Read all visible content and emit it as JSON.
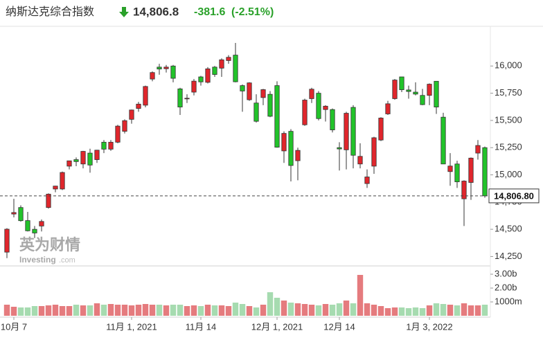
{
  "header": {
    "title": "纳斯达克综合指数",
    "price": "14,806.8",
    "change": "-381.6",
    "change_pct": "(-2.51%)"
  },
  "watermark": {
    "brand": "英为财情",
    "site": "Investing",
    "domain": ".com"
  },
  "chart_data": {
    "type": "candlestick",
    "categories": [
      null,
      "10月 7",
      null,
      null,
      null,
      null,
      null,
      null,
      null,
      null,
      null,
      null,
      null,
      null,
      null,
      null,
      null,
      null,
      "11月 1, 2021",
      null,
      null,
      null,
      null,
      null,
      null,
      null,
      null,
      null,
      "11月 14",
      null,
      null,
      null,
      null,
      null,
      null,
      null,
      null,
      null,
      null,
      "12月 1, 2021",
      null,
      null,
      null,
      null,
      null,
      null,
      null,
      null,
      "12月 14",
      null,
      null,
      null,
      null,
      null,
      null,
      null,
      null,
      null,
      null,
      null,
      null,
      "1月 3, 2022",
      null,
      null,
      null,
      null,
      null,
      null,
      null,
      null
    ],
    "open": [
      14290,
      14640,
      14700,
      14580,
      14500,
      14530,
      14700,
      14870,
      14870,
      15080,
      15140,
      15100,
      15200,
      15140,
      15300,
      15236,
      15300,
      15400,
      15510,
      15610,
      15640,
      15880,
      15990,
      15975,
      16000,
      15790,
      15700,
      15760,
      15900,
      15850,
      15990,
      15980,
      16050,
      16100,
      15820,
      15690,
      15660,
      15710,
      15740,
      15820,
      15220,
      15400,
      15130,
      15460,
      15700,
      15750,
      15600,
      15600,
      15250,
      15230,
      15620,
      15100,
      14920,
      15080,
      15320,
      15560,
      15700,
      15900,
      15780,
      15760,
      15730,
      15730,
      15860,
      15530,
      15030,
      15100,
      14780,
      14930,
      15200,
      15250
    ],
    "high": [
      14510,
      14780,
      14720,
      14660,
      14530,
      14590,
      14830,
      14900,
      15030,
      15130,
      15160,
      15220,
      15240,
      15230,
      15320,
      15320,
      15460,
      15510,
      15600,
      15670,
      15820,
      15950,
      16020,
      16010,
      16010,
      15800,
      15740,
      15880,
      15910,
      15990,
      16000,
      16070,
      16100,
      16212,
      15830,
      15850,
      15740,
      15790,
      15770,
      15860,
      15400,
      15420,
      15250,
      15700,
      15800,
      15770,
      15640,
      15610,
      15300,
      15580,
      15640,
      15290,
      15050,
      15350,
      15530,
      15680,
      15880,
      15900,
      15820,
      15850,
      15790,
      15840,
      15860,
      15570,
      15200,
      15130,
      14950,
      15160,
      15320,
      15260
    ],
    "low": [
      14235,
      14610,
      14570,
      14480,
      14420,
      14480,
      14690,
      14840,
      14860,
      15050,
      15080,
      15060,
      15020,
      15110,
      15200,
      15220,
      15290,
      15380,
      15470,
      15580,
      15620,
      15860,
      15920,
      15940,
      15850,
      15550,
      15660,
      15730,
      15820,
      15840,
      15900,
      15900,
      16020,
      15850,
      15580,
      15680,
      15480,
      15640,
      15530,
      15250,
      15110,
      14940,
      14950,
      15450,
      15660,
      15500,
      15490,
      15390,
      15040,
      15050,
      15060,
      15060,
      14880,
      15010,
      15310,
      15550,
      15690,
      15760,
      15700,
      15730,
      15640,
      15640,
      15560,
      15100,
      14900,
      14880,
      14530,
      14770,
      15140,
      14790
    ],
    "close": [
      14501,
      14654,
      14579,
      14486,
      14466,
      14572,
      14823,
      14897,
      15022,
      15129,
      15122,
      15216,
      15090,
      15227,
      15236,
      15300,
      15448,
      15498,
      15596,
      15650,
      15812,
      15940,
      15972,
      15990,
      15887,
      15623,
      15704,
      15861,
      15854,
      15974,
      15922,
      16057,
      16080,
      15855,
      15770,
      15845,
      15492,
      15783,
      15538,
      15254,
      15381,
      15086,
      15225,
      15687,
      15787,
      15517,
      15631,
      15413,
      15238,
      15566,
      15180,
      15170,
      14981,
      15341,
      15522,
      15653,
      15871,
      15782,
      15766,
      15742,
      15645,
      15833,
      15623,
      15100,
      15081,
      14936,
      14943,
      15154,
      15270,
      14807
    ],
    "up_color": "#e0262c",
    "down_color": "#22c32a",
    "ylim": [
      14170,
      16320
    ],
    "yticks": [
      {
        "value": 14250,
        "label": "14,250"
      },
      {
        "value": 14500,
        "label": "14,500"
      },
      {
        "value": 14750,
        "label": "14,750"
      },
      {
        "value": 15000,
        "label": "15,000"
      },
      {
        "value": 15250,
        "label": "15,250"
      },
      {
        "value": 15500,
        "label": "15,500"
      },
      {
        "value": 15750,
        "label": "15,750"
      },
      {
        "value": 16000,
        "label": "16,000"
      }
    ],
    "last_price": {
      "value": 14806.8,
      "label": "14,806.80"
    },
    "volume": {
      "values": [
        0.8,
        0.65,
        0.6,
        0.6,
        0.7,
        0.7,
        0.75,
        0.8,
        0.7,
        0.7,
        0.8,
        0.75,
        0.75,
        0.9,
        0.8,
        0.85,
        0.8,
        0.8,
        0.75,
        0.8,
        0.85,
        0.8,
        0.8,
        0.75,
        0.8,
        0.8,
        0.7,
        0.75,
        0.7,
        0.8,
        0.75,
        0.75,
        0.7,
        0.95,
        0.85,
        0.7,
        0.6,
        0.8,
        1.7,
        1.3,
        1.1,
        0.95,
        0.9,
        0.85,
        0.8,
        0.75,
        0.85,
        0.8,
        0.9,
        1.1,
        0.9,
        2.95,
        0.9,
        0.8,
        0.7,
        0.55,
        0.6,
        0.6,
        0.55,
        0.6,
        0.55,
        0.75,
        0.9,
        0.85,
        0.8,
        0.75,
        0.9,
        0.75,
        0.75,
        0.8
      ],
      "up_color": "#e57b7e",
      "down_color": "#a6dbb0",
      "ylim": [
        0,
        3.5
      ],
      "yticks": [
        {
          "value": 1,
          "label": "1000m"
        },
        {
          "value": 2,
          "label": "2.00b"
        },
        {
          "value": 3,
          "label": "3.00b"
        }
      ]
    }
  }
}
